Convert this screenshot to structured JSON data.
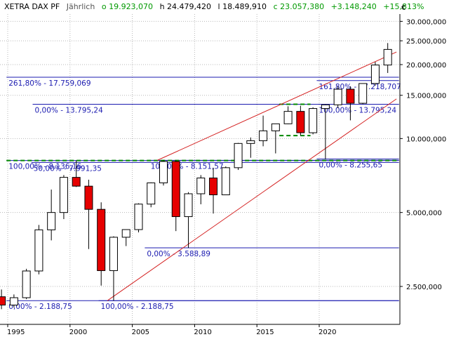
{
  "header": {
    "symbol": "XETRA DAX PF",
    "period": "Jährlich",
    "open": "o 19.923,070",
    "high": "h 24.479,420",
    "low": "l 18.489,910",
    "close": "c 23.057,380",
    "change": "+3.148,240",
    "change_pct": "+15,813%"
  },
  "currency": "€",
  "colors": {
    "up_fill": "#ffffff",
    "down_fill": "#e60000",
    "candle_outline": "#000000",
    "trend_line": "#d42020",
    "fib_line": "#1b1bb0",
    "fib_text": "#1b1bb0",
    "dashed_green": "#008800",
    "grid": "#b8b8b8",
    "positive": "#009900"
  },
  "chart_data": {
    "type": "candlestick",
    "interval": "yearly",
    "y_scale": "log",
    "ylim": [
      2000,
      35000
    ],
    "xlim": [
      1994.2,
      2026.4
    ],
    "grid": true,
    "y_ticks": [
      {
        "value": 2500,
        "label": "2.500,000"
      },
      {
        "value": 5000,
        "label": "5.000,000"
      },
      {
        "value": 10000,
        "label": "10.000,000"
      },
      {
        "value": 15000,
        "label": "15.000,000"
      },
      {
        "value": 20000,
        "label": "20.000,000"
      },
      {
        "value": 25000,
        "label": "25.000,000"
      },
      {
        "value": 30000,
        "label": "30.000,000"
      }
    ],
    "x_ticks": [
      {
        "value": 1995,
        "label": "1995"
      },
      {
        "value": 2000,
        "label": "2000"
      },
      {
        "value": 2005,
        "label": "2005"
      },
      {
        "value": 2010,
        "label": "2010"
      },
      {
        "value": 2015,
        "label": "2015"
      },
      {
        "value": 2020,
        "label": "2020"
      }
    ],
    "candles": [
      {
        "year": 1994,
        "open": 2270,
        "high": 2430,
        "low": 2020,
        "close": 2100
      },
      {
        "year": 1995,
        "open": 2100,
        "high": 2320,
        "low": 2050,
        "close": 2250
      },
      {
        "year": 1996,
        "open": 2250,
        "high": 2950,
        "low": 2220,
        "close": 2890
      },
      {
        "year": 1997,
        "open": 2890,
        "high": 4450,
        "low": 2800,
        "close": 4250
      },
      {
        "year": 1998,
        "open": 4250,
        "high": 6200,
        "low": 3850,
        "close": 5000
      },
      {
        "year": 1999,
        "open": 5000,
        "high": 7100,
        "low": 4700,
        "close": 6950
      },
      {
        "year": 2000,
        "open": 6950,
        "high": 8136,
        "low": 6350,
        "close": 6400
      },
      {
        "year": 2001,
        "open": 6400,
        "high": 6800,
        "low": 3550,
        "close": 5150
      },
      {
        "year": 2002,
        "open": 5150,
        "high": 5500,
        "low": 2520,
        "close": 2900
      },
      {
        "year": 2003,
        "open": 2900,
        "high": 4000,
        "low": 2189,
        "close": 3965
      },
      {
        "year": 2004,
        "open": 3965,
        "high": 4200,
        "low": 3650,
        "close": 4260
      },
      {
        "year": 2005,
        "open": 4260,
        "high": 5450,
        "low": 4150,
        "close": 5410
      },
      {
        "year": 2006,
        "open": 5410,
        "high": 6630,
        "low": 5250,
        "close": 6600
      },
      {
        "year": 2007,
        "open": 6600,
        "high": 8151,
        "low": 6440,
        "close": 8067
      },
      {
        "year": 2008,
        "open": 8067,
        "high": 8150,
        "low": 4200,
        "close": 4810
      },
      {
        "year": 2009,
        "open": 4810,
        "high": 6050,
        "low": 3589,
        "close": 5960
      },
      {
        "year": 2010,
        "open": 5960,
        "high": 7100,
        "low": 5400,
        "close": 6910
      },
      {
        "year": 2011,
        "open": 6910,
        "high": 7600,
        "low": 4950,
        "close": 5900
      },
      {
        "year": 2012,
        "open": 5900,
        "high": 7700,
        "low": 5900,
        "close": 7610
      },
      {
        "year": 2013,
        "open": 7610,
        "high": 9600,
        "low": 7450,
        "close": 9550
      },
      {
        "year": 2014,
        "open": 9550,
        "high": 10100,
        "low": 8350,
        "close": 9800
      },
      {
        "year": 2015,
        "open": 9800,
        "high": 12400,
        "low": 9300,
        "close": 10750
      },
      {
        "year": 2016,
        "open": 10750,
        "high": 11500,
        "low": 8700,
        "close": 11480
      },
      {
        "year": 2017,
        "open": 11480,
        "high": 13530,
        "low": 11450,
        "close": 12900
      },
      {
        "year": 2018,
        "open": 12900,
        "high": 13600,
        "low": 10280,
        "close": 10560
      },
      {
        "year": 2019,
        "open": 10560,
        "high": 13400,
        "low": 10400,
        "close": 13250
      },
      {
        "year": 2020,
        "open": 13250,
        "high": 13800,
        "low": 8256,
        "close": 13720
      },
      {
        "year": 2021,
        "open": 13720,
        "high": 16300,
        "low": 13310,
        "close": 15880
      },
      {
        "year": 2022,
        "open": 15880,
        "high": 16300,
        "low": 11860,
        "close": 13920
      },
      {
        "year": 2023,
        "open": 13920,
        "high": 16800,
        "low": 13800,
        "close": 16750
      },
      {
        "year": 2024,
        "open": 16750,
        "high": 20500,
        "low": 16400,
        "close": 19920
      },
      {
        "year": 2025,
        "open": 19920,
        "high": 24479,
        "low": 18490,
        "close": 23057
      }
    ],
    "fib_levels": [
      {
        "price": 17759.069,
        "x_from": 1994.9,
        "x_to": 2026.4,
        "text": "261,80% - 17.759,069",
        "text_x": 1994.9
      },
      {
        "price": 17218.707,
        "x_from": 2019.8,
        "x_to": 2026.4,
        "text": "161,80% - 17.218,707",
        "text_x": 2019.8
      },
      {
        "price": 13795.24,
        "x_from": 1997.0,
        "x_to": 2026.4,
        "text": "0,00% - 13.795,24",
        "text_x": 1997.0
      },
      {
        "price": 13795.24,
        "x_from": 2019.8,
        "x_to": 2026.4,
        "text": "100,00% - 13.795,24",
        "text_x": 2019.8
      },
      {
        "price": 8255.65,
        "x_from": 2019.8,
        "x_to": 2026.4,
        "text": "0,00% - 8.255,65",
        "text_x": 2019.8
      },
      {
        "price": 8136.16,
        "x_from": 1994.9,
        "x_to": 2026.4,
        "text": "100,00% - 8.136,16",
        "text_x": 1994.9
      },
      {
        "price": 8151.57,
        "x_from": 2006.3,
        "x_to": 2026.4,
        "text": "100,00% - 8.151,57",
        "text_x": 2006.3
      },
      {
        "price": 7991.35,
        "x_from": 1996.9,
        "x_to": 2026.4,
        "text": "50,00% - 7.991,35",
        "text_x": 1996.9
      },
      {
        "price": 3588.89,
        "x_from": 2006.0,
        "x_to": 2026.4,
        "text": "0,00% - 3.588,89",
        "text_x": 2006.0
      },
      {
        "price": 2188.75,
        "x_from": 1994.9,
        "x_to": 2026.4,
        "text": "0,00% - 2.188,75",
        "text_x": 1994.9
      },
      {
        "price": 2188.75,
        "x_from": 2002.3,
        "x_to": 2026.4,
        "text": "100,00% - 2.188,75",
        "text_x": 2002.3
      }
    ],
    "dashed_levels": [
      {
        "price": 8136,
        "x_from": 1994.9,
        "x_to": 2026.4
      },
      {
        "price": 13795,
        "x_from": 2016.8,
        "x_to": 2019.3
      },
      {
        "price": 10280,
        "x_from": 2016.8,
        "x_to": 2019.3
      }
    ],
    "trend_lines": [
      {
        "x1": 2003.0,
        "y1": 2188.75,
        "x2": 2026.2,
        "y2": 14500
      },
      {
        "x1": 2007.0,
        "y1": 8151.57,
        "x2": 2026.2,
        "y2": 22500
      }
    ]
  }
}
